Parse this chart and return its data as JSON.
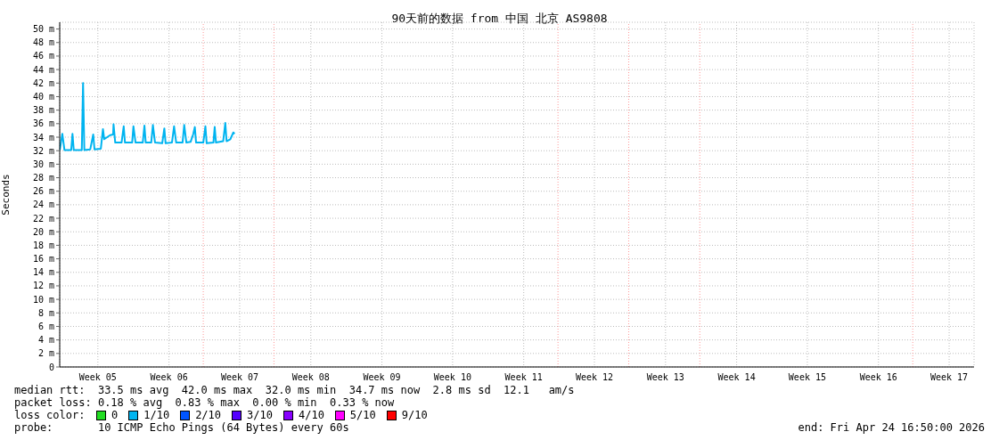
{
  "chart_data": {
    "type": "line",
    "title": "90天前的数据 from  中国 北京 AS9808",
    "ylabel": "Seconds",
    "xlim": [
      "2026-01-24T16:50",
      "2026-04-24T16:50"
    ],
    "xticks": [
      {
        "value": "2026-01-28T11:00",
        "label": "Week 05"
      },
      {
        "value": "2026-02-04T11:00",
        "label": "Week 06"
      },
      {
        "value": "2026-02-11T10:00",
        "label": "Week 07"
      },
      {
        "value": "2026-02-18T10:00",
        "label": "Week 08"
      },
      {
        "value": "2026-02-25T10:00",
        "label": "Week 09"
      },
      {
        "value": "2026-03-04T09:00",
        "label": "Week 10"
      },
      {
        "value": "2026-03-11T09:00",
        "label": "Week 11"
      },
      {
        "value": "2026-03-18T08:00",
        "label": "Week 12"
      },
      {
        "value": "2026-03-25T08:00",
        "label": "Week 13"
      },
      {
        "value": "2026-04-01T08:00",
        "label": "Week 14"
      },
      {
        "value": "2026-04-08T07:00",
        "label": "Week 15"
      },
      {
        "value": "2026-04-15T07:00",
        "label": "Week 16"
      },
      {
        "value": "2026-04-22T06:00",
        "label": "Week 17"
      }
    ],
    "ylim": [
      0,
      51
    ],
    "yticks": [
      {
        "value": 0,
        "label": "0"
      },
      {
        "value": 2,
        "label": "2 m"
      },
      {
        "value": 4,
        "label": "4 m"
      },
      {
        "value": 6,
        "label": "6 m"
      },
      {
        "value": 8,
        "label": "8 m"
      },
      {
        "value": 10,
        "label": "10 m"
      },
      {
        "value": 12,
        "label": "12 m"
      },
      {
        "value": 14,
        "label": "14 m"
      },
      {
        "value": 16,
        "label": "16 m"
      },
      {
        "value": 18,
        "label": "18 m"
      },
      {
        "value": 20,
        "label": "20 m"
      },
      {
        "value": 22,
        "label": "22 m"
      },
      {
        "value": 24,
        "label": "24 m"
      },
      {
        "value": 26,
        "label": "26 m"
      },
      {
        "value": 28,
        "label": "28 m"
      },
      {
        "value": 30,
        "label": "30 m"
      },
      {
        "value": 32,
        "label": "32 m"
      },
      {
        "value": 34,
        "label": "34 m"
      },
      {
        "value": 36,
        "label": "36 m"
      },
      {
        "value": 38,
        "label": "38 m"
      },
      {
        "value": 40,
        "label": "40 m"
      },
      {
        "value": 42,
        "label": "42 m"
      },
      {
        "value": 44,
        "label": "44 m"
      },
      {
        "value": 46,
        "label": "46 m"
      },
      {
        "value": 48,
        "label": "48 m"
      },
      {
        "value": 50,
        "label": "50 m"
      }
    ],
    "x": [
      "2026-01-24T17:00",
      "2026-01-24T23:00",
      "2026-01-25T04:00",
      "2026-01-25T20:00",
      "2026-01-25T23:00",
      "2026-01-26T02:00",
      "2026-01-26T21:00",
      "2026-01-27T00:00",
      "2026-01-27T03:00",
      "2026-01-27T17:00",
      "2026-01-28T00:00",
      "2026-01-28T03:00",
      "2026-01-28T18:00",
      "2026-01-28T23:00",
      "2026-01-29T02:00",
      "2026-01-29T16:00",
      "2026-01-29T23:00",
      "2026-01-30T00:00",
      "2026-01-30T04:00",
      "2026-01-30T19:00",
      "2026-01-31T00:00",
      "2026-01-31T03:00",
      "2026-01-31T20:00",
      "2026-01-31T23:00",
      "2026-02-01T04:00",
      "2026-02-01T21:00",
      "2026-02-02T01:00",
      "2026-02-02T04:00",
      "2026-02-02T17:00",
      "2026-02-02T21:00",
      "2026-02-03T02:00",
      "2026-02-03T19:00",
      "2026-02-04T00:00",
      "2026-02-04T03:00",
      "2026-02-04T18:00",
      "2026-02-04T23:00",
      "2026-02-05T04:00",
      "2026-02-05T19:00",
      "2026-02-05T23:00",
      "2026-02-06T04:00",
      "2026-02-06T14:00",
      "2026-02-06T20:00",
      "2026-02-07T00:00",
      "2026-02-07T03:00",
      "2026-02-07T20:00",
      "2026-02-08T01:00",
      "2026-02-08T04:00",
      "2026-02-08T20:00",
      "2026-02-08T23:00",
      "2026-02-09T02:00",
      "2026-02-09T19:00",
      "2026-02-10T00:00",
      "2026-02-10T03:00",
      "2026-02-10T12:00",
      "2026-02-10T19:00",
      "2026-02-10T22:00"
    ],
    "series": [
      {
        "color": "#00b4f0",
        "values": [
          32.1,
          34.5,
          32.1,
          32.1,
          34.5,
          32.1,
          32.1,
          42.0,
          32.1,
          32.2,
          34.4,
          32.2,
          32.3,
          35.2,
          33.7,
          34.3,
          34.4,
          35.9,
          33.2,
          33.2,
          35.6,
          33.2,
          33.2,
          35.6,
          33.2,
          33.2,
          35.7,
          33.2,
          33.2,
          35.8,
          33.2,
          33.1,
          35.3,
          33.1,
          33.2,
          35.6,
          33.2,
          33.2,
          35.8,
          33.2,
          33.3,
          34.4,
          35.5,
          33.2,
          33.2,
          35.6,
          33.1,
          33.2,
          35.5,
          33.2,
          33.4,
          36.1,
          33.4,
          33.7,
          34.7,
          34.5
        ]
      }
    ],
    "marker": "none",
    "line_style": "solid",
    "grid": true,
    "legend": false,
    "ref_lines": [
      {
        "axis": "x",
        "value": "2026-02-07T20:00",
        "color": "#ff9999",
        "line_style": "dotted"
      },
      {
        "axis": "x",
        "value": "2026-02-14T19:00",
        "color": "#ff9999",
        "line_style": "dotted"
      },
      {
        "axis": "x",
        "value": "2026-03-14T18:00",
        "color": "#ff9999",
        "line_style": "dotted"
      },
      {
        "axis": "x",
        "value": "2026-03-21T17:00",
        "color": "#ff9999",
        "line_style": "dotted"
      },
      {
        "axis": "x",
        "value": "2026-03-28T17:00",
        "color": "#ff9999",
        "line_style": "dotted"
      },
      {
        "axis": "x",
        "value": "2026-04-18T16:00",
        "color": "#ff9999",
        "line_style": "dotted"
      }
    ],
    "annotations": [
      "median rtt:  33.5 ms avg  42.0 ms max  32.0 ms min  34.7 ms now  2.8 ms sd  12.1   am/s",
      "packet loss: 0.18 % avg  0.83 % max  0.00 % min  0.33 % now",
      "loss color:",
      "0",
      "1/10",
      "2/10",
      "3/10",
      "4/10",
      "5/10",
      "9/10",
      "probe:       10 ICMP Echo Pings (64 Bytes) every 60s",
      "end: Fri Apr 24 16:50:00 2026"
    ]
  }
}
